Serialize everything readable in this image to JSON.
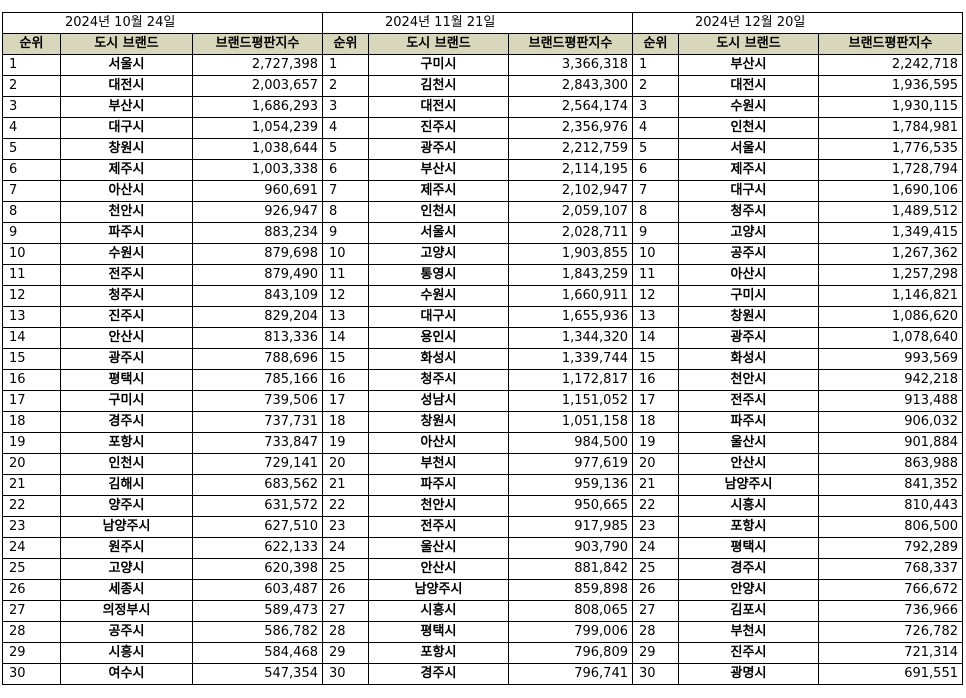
{
  "headers": {
    "rank": "순위",
    "city": "도시 브랜드",
    "score": "브랜드평판지수"
  },
  "periods": [
    {
      "date": "2024년 10월 24일",
      "rows": [
        [
          "1",
          "서울시",
          "2,727,398"
        ],
        [
          "2",
          "대전시",
          "2,003,657"
        ],
        [
          "3",
          "부산시",
          "1,686,293"
        ],
        [
          "4",
          "대구시",
          "1,054,239"
        ],
        [
          "5",
          "창원시",
          "1,038,644"
        ],
        [
          "6",
          "제주시",
          "1,003,338"
        ],
        [
          "7",
          "아산시",
          "960,691"
        ],
        [
          "8",
          "천안시",
          "926,947"
        ],
        [
          "9",
          "파주시",
          "883,234"
        ],
        [
          "10",
          "수원시",
          "879,698"
        ],
        [
          "11",
          "전주시",
          "879,490"
        ],
        [
          "12",
          "청주시",
          "843,109"
        ],
        [
          "13",
          "진주시",
          "829,204"
        ],
        [
          "14",
          "안산시",
          "813,336"
        ],
        [
          "15",
          "광주시",
          "788,696"
        ],
        [
          "16",
          "평택시",
          "785,166"
        ],
        [
          "17",
          "구미시",
          "739,506"
        ],
        [
          "18",
          "경주시",
          "737,731"
        ],
        [
          "19",
          "포항시",
          "733,847"
        ],
        [
          "20",
          "인천시",
          "729,141"
        ],
        [
          "21",
          "김해시",
          "683,562"
        ],
        [
          "22",
          "양주시",
          "631,572"
        ],
        [
          "23",
          "남양주시",
          "627,510"
        ],
        [
          "24",
          "원주시",
          "622,133"
        ],
        [
          "25",
          "고양시",
          "620,398"
        ],
        [
          "26",
          "세종시",
          "603,487"
        ],
        [
          "27",
          "의정부시",
          "589,473"
        ],
        [
          "28",
          "공주시",
          "586,782"
        ],
        [
          "29",
          "시흥시",
          "584,468"
        ],
        [
          "30",
          "여수시",
          "547,354"
        ]
      ]
    },
    {
      "date": "2024년 11월 21일",
      "rows": [
        [
          "1",
          "구미시",
          "3,366,318"
        ],
        [
          "2",
          "김천시",
          "2,843,300"
        ],
        [
          "3",
          "대전시",
          "2,564,174"
        ],
        [
          "4",
          "진주시",
          "2,356,976"
        ],
        [
          "5",
          "광주시",
          "2,212,759"
        ],
        [
          "6",
          "부산시",
          "2,114,195"
        ],
        [
          "7",
          "제주시",
          "2,102,947"
        ],
        [
          "8",
          "인천시",
          "2,059,107"
        ],
        [
          "9",
          "서울시",
          "2,028,711"
        ],
        [
          "10",
          "고양시",
          "1,903,855"
        ],
        [
          "11",
          "통영시",
          "1,843,259"
        ],
        [
          "12",
          "수원시",
          "1,660,911"
        ],
        [
          "13",
          "대구시",
          "1,655,936"
        ],
        [
          "14",
          "용인시",
          "1,344,320"
        ],
        [
          "15",
          "화성시",
          "1,339,744"
        ],
        [
          "16",
          "청주시",
          "1,172,817"
        ],
        [
          "17",
          "성남시",
          "1,151,052"
        ],
        [
          "18",
          "창원시",
          "1,051,158"
        ],
        [
          "19",
          "아산시",
          "984,500"
        ],
        [
          "20",
          "부천시",
          "977,619"
        ],
        [
          "21",
          "파주시",
          "959,136"
        ],
        [
          "22",
          "천안시",
          "950,665"
        ],
        [
          "23",
          "전주시",
          "917,985"
        ],
        [
          "24",
          "울산시",
          "903,790"
        ],
        [
          "25",
          "안산시",
          "881,842"
        ],
        [
          "26",
          "남양주시",
          "859,898"
        ],
        [
          "27",
          "시흥시",
          "808,065"
        ],
        [
          "28",
          "평택시",
          "799,006"
        ],
        [
          "29",
          "포항시",
          "796,809"
        ],
        [
          "30",
          "경주시",
          "796,741"
        ]
      ]
    },
    {
      "date": "2024년 12월 20일",
      "rows": [
        [
          "1",
          "부산시",
          "2,242,718"
        ],
        [
          "2",
          "대전시",
          "1,936,595"
        ],
        [
          "3",
          "수원시",
          "1,930,115"
        ],
        [
          "4",
          "인천시",
          "1,784,981"
        ],
        [
          "5",
          "서울시",
          "1,776,535"
        ],
        [
          "6",
          "제주시",
          "1,728,794"
        ],
        [
          "7",
          "대구시",
          "1,690,106"
        ],
        [
          "8",
          "청주시",
          "1,489,512"
        ],
        [
          "9",
          "고양시",
          "1,349,415"
        ],
        [
          "10",
          "공주시",
          "1,267,362"
        ],
        [
          "11",
          "아산시",
          "1,257,298"
        ],
        [
          "12",
          "구미시",
          "1,146,821"
        ],
        [
          "13",
          "창원시",
          "1,086,620"
        ],
        [
          "14",
          "광주시",
          "1,078,640"
        ],
        [
          "15",
          "화성시",
          "993,569"
        ],
        [
          "16",
          "천안시",
          "942,218"
        ],
        [
          "17",
          "전주시",
          "913,488"
        ],
        [
          "18",
          "파주시",
          "906,032"
        ],
        [
          "19",
          "울산시",
          "901,884"
        ],
        [
          "20",
          "안산시",
          "863,988"
        ],
        [
          "21",
          "남양주시",
          "841,352"
        ],
        [
          "22",
          "시흥시",
          "810,443"
        ],
        [
          "23",
          "포항시",
          "806,500"
        ],
        [
          "24",
          "평택시",
          "792,289"
        ],
        [
          "25",
          "경주시",
          "768,337"
        ],
        [
          "26",
          "안양시",
          "766,672"
        ],
        [
          "27",
          "김포시",
          "736,966"
        ],
        [
          "28",
          "부천시",
          "726,782"
        ],
        [
          "29",
          "진주시",
          "721,314"
        ],
        [
          "30",
          "광명시",
          "691,551"
        ]
      ]
    }
  ]
}
